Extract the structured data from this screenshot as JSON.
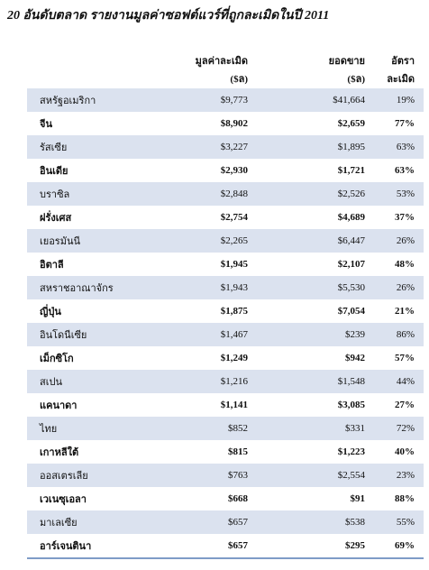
{
  "title": "20 อันดับตลาด รายงานมูลค่าซอฟต์แวร์ที่ถูกละเมิดในปี 2011",
  "table": {
    "header": [
      [
        "",
        ""
      ],
      [
        "มูลค่าละเมิด",
        "($ล)"
      ],
      [
        "ยอดขาย",
        "($ล)"
      ],
      [
        "อัตราละเมิด",
        ""
      ]
    ],
    "rows": [
      [
        "สหรัฐอเมริกา",
        "$9,773",
        "$41,664",
        "19%"
      ],
      [
        "จีน",
        "$8,902",
        "$2,659",
        "77%"
      ],
      [
        "รัสเซีย",
        "$3,227",
        "$1,895",
        "63%"
      ],
      [
        "อินเดีย",
        "$2,930",
        "$1,721",
        "63%"
      ],
      [
        "บราซิล",
        "$2,848",
        "$2,526",
        "53%"
      ],
      [
        "ฝรั่งเศส",
        "$2,754",
        "$4,689",
        "37%"
      ],
      [
        "เยอรมันนี",
        "$2,265",
        "$6,447",
        "26%"
      ],
      [
        "อิตาลี",
        "$1,945",
        "$2,107",
        "48%"
      ],
      [
        "สหราชอาณาจักร",
        "$1,943",
        "$5,530",
        "26%"
      ],
      [
        "ญี่ปุ่น",
        "$1,875",
        "$7,054",
        "21%"
      ],
      [
        "อินโดนีเซีย",
        "$1,467",
        "$239",
        "86%"
      ],
      [
        "เม็กซิโก",
        "$1,249",
        "$942",
        "57%"
      ],
      [
        "สเปน",
        "$1,216",
        "$1,548",
        "44%"
      ],
      [
        "แคนาดา",
        "$1,141",
        "$3,085",
        "27%"
      ],
      [
        "ไทย",
        "$852",
        "$331",
        "72%"
      ],
      [
        "เกาหลีใต้",
        "$815",
        "$1,223",
        "40%"
      ],
      [
        "ออสเตรเลีย",
        "$763",
        "$2,554",
        "23%"
      ],
      [
        "เวเนซุเอลา",
        "$668",
        "$91",
        "88%"
      ],
      [
        "มาเลเซีย",
        "$657",
        "$538",
        "55%"
      ],
      [
        "อาร์เจนตินา",
        "$657",
        "$295",
        "69%"
      ]
    ]
  }
}
